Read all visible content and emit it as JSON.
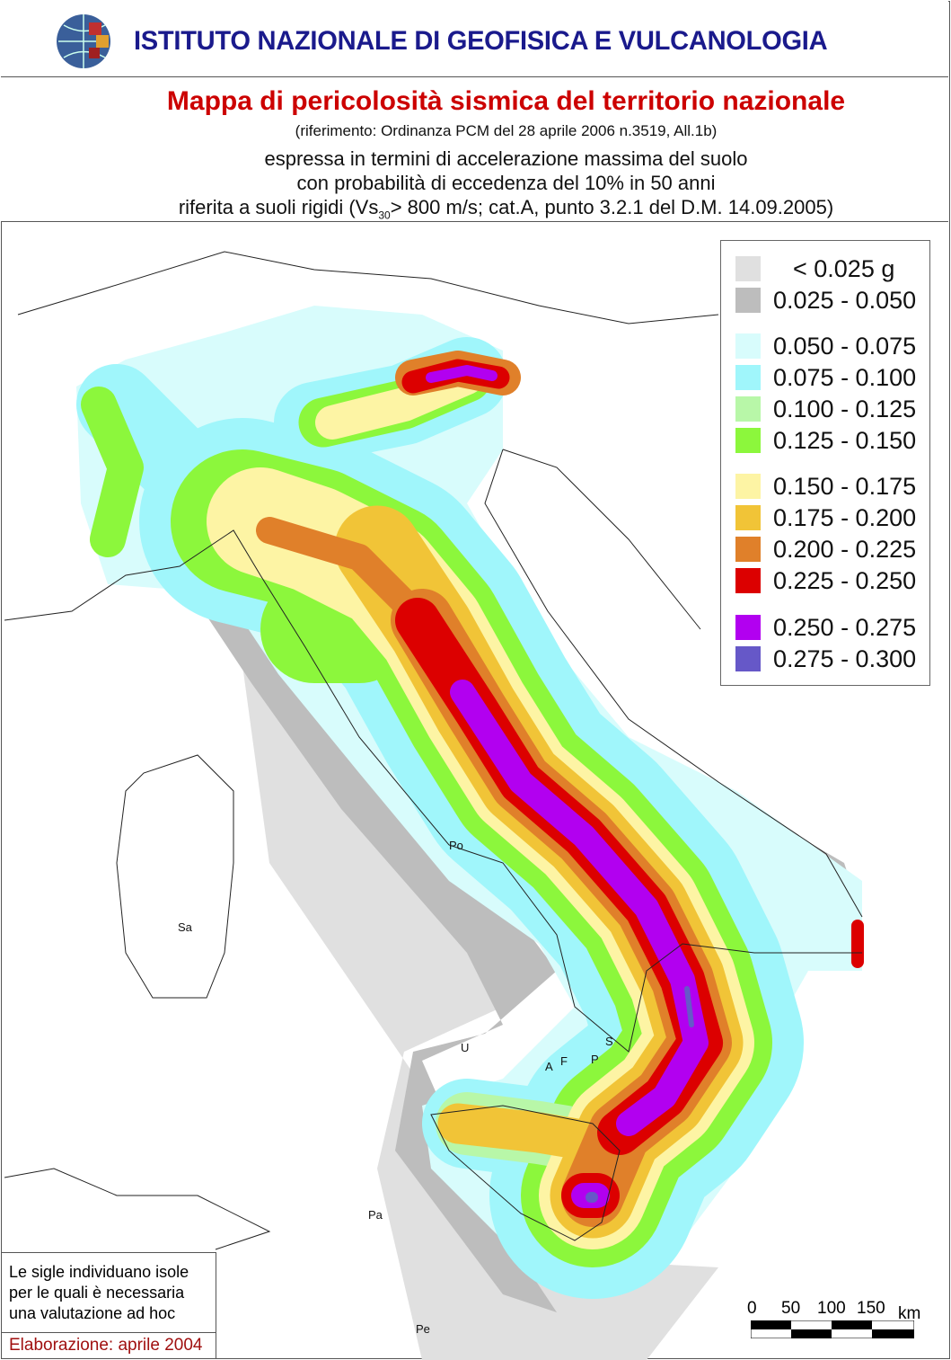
{
  "header": {
    "institute": "ISTITUTO NAZIONALE DI GEOFISICA E VULCANOLOGIA",
    "title": "Mappa di pericolosità sismica del territorio nazionale",
    "reference": "(riferimento: Ordinanza PCM del 28 aprile 2006 n.3519, All.1b)",
    "line1": "espressa in termini di accelerazione massima del suolo",
    "line2": "con probabilità di eccedenza del 10% in 50 anni",
    "line3_pre": "riferita a suoli rigidi (Vs",
    "line3_sub": "30",
    "line3_post": "> 800 m/s; cat.A, punto 3.2.1 del D.M. 14.09.2005)"
  },
  "legend": [
    {
      "label": "< 0.025 g",
      "color": "#e0e0e0"
    },
    {
      "label": "0.025 - 0.050",
      "color": "#bdbdbd"
    },
    {
      "label": "0.050 - 0.075",
      "color": "#d8fcfc"
    },
    {
      "label": "0.075 - 0.100",
      "color": "#a0f6fb"
    },
    {
      "label": "0.100 - 0.125",
      "color": "#b8f7a8"
    },
    {
      "label": "0.125 - 0.150",
      "color": "#8cf73c"
    },
    {
      "label": "0.150 - 0.175",
      "color": "#fdf4a4"
    },
    {
      "label": "0.175 - 0.200",
      "color": "#f1c437"
    },
    {
      "label": "0.200 - 0.225",
      "color": "#e0802a"
    },
    {
      "label": "0.225 - 0.250",
      "color": "#dc0000"
    },
    {
      "label": "0.250 - 0.275",
      "color": "#b200f0"
    },
    {
      "label": "0.275 - 0.300",
      "color": "#6658c8"
    }
  ],
  "islands": [
    "Po",
    "Sa",
    "U",
    "S",
    "A",
    "F",
    "P",
    "Pa",
    "Pe"
  ],
  "note": "Le sigle individuano isole per le quali è necessaria una valutazione ad hoc",
  "elaboration": "Elaborazione: aprile 2004",
  "scale": {
    "ticks": [
      "0",
      "50",
      "100",
      "150"
    ],
    "unit": "km"
  }
}
